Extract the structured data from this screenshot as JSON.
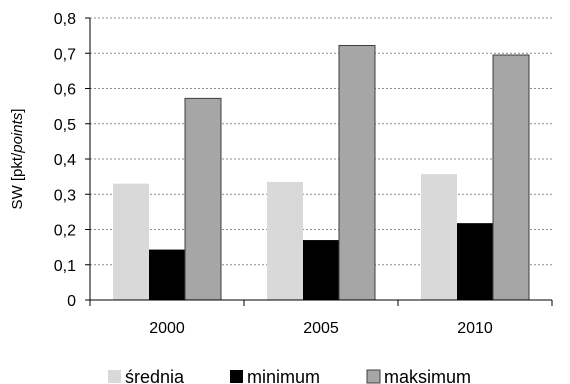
{
  "chart_data": {
    "type": "bar",
    "categories": [
      "2000",
      "2005",
      "2010"
    ],
    "series": [
      {
        "name": "średnia",
        "values": [
          0.33,
          0.335,
          0.357
        ],
        "color": "#d9d9d9"
      },
      {
        "name": "minimum",
        "values": [
          0.143,
          0.17,
          0.218
        ],
        "color": "#000000"
      },
      {
        "name": "maksimum",
        "values": [
          0.572,
          0.722,
          0.695
        ],
        "color": "#a6a6a6"
      }
    ],
    "ylabel_prefix": "SW [pkt/",
    "ylabel_italic": "points",
    "ylabel_suffix": "]",
    "ylim": [
      0,
      0.8
    ],
    "yticks": [
      "0",
      "0,1",
      "0,2",
      "0,3",
      "0,4",
      "0,5",
      "0,6",
      "0,7",
      "0,8"
    ],
    "ytick_values": [
      0,
      0.1,
      0.2,
      0.3,
      0.4,
      0.5,
      0.6,
      0.7,
      0.8
    ],
    "grid": "horizontal dashed",
    "legend_position": "bottom"
  }
}
